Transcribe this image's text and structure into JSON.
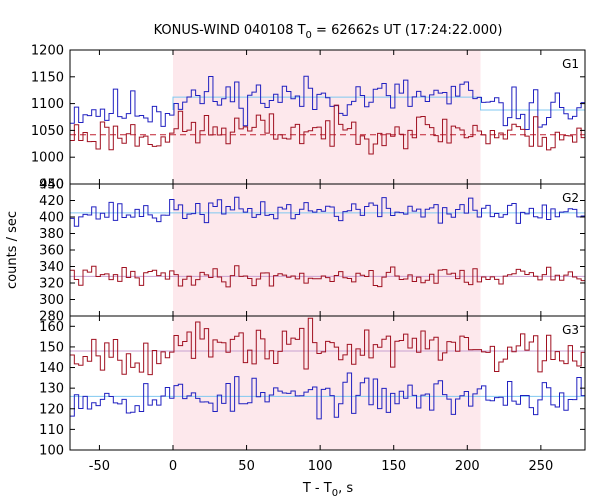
{
  "chart_data": {
    "type": "line",
    "title": {
      "prefix": "KONUS-WIND 040108 T",
      "sub": "0",
      "suffix": " = 62662s UT (17:24:22.000)"
    },
    "xlabel": {
      "prefix": "T - T",
      "sub": "0",
      "suffix": ", s"
    },
    "ylabel": "counts / sec",
    "xlim": [
      -70,
      280
    ],
    "xticks": [
      -50,
      0,
      50,
      100,
      150,
      200,
      250
    ],
    "highlight_interval": [
      0,
      209
    ],
    "colors": {
      "highlight": "#fde8ec",
      "blue_series": "#2020c0",
      "red_series": "#a01020",
      "blue_mean": "#80c8f0",
      "red_mean": "#c8a0d0",
      "red_dashed": "#c02030"
    },
    "panels": [
      {
        "label": "G1",
        "ylim": [
          950,
          1200
        ],
        "yticks": [
          950,
          1000,
          1050,
          1100,
          1150,
          1200
        ],
        "series": [
          {
            "color_key": "blue_series",
            "mean": 1088,
            "in_level": 1112,
            "amplitude": 30,
            "seed": 11
          },
          {
            "color_key": "red_series",
            "mean": 1042,
            "in_level": 1050,
            "amplitude": 26,
            "seed": 23
          }
        ],
        "reference_lines": [
          {
            "color_key": "blue_mean",
            "value": 1088,
            "start_x": 0,
            "level_in_interval": 1112,
            "dashed": false
          },
          {
            "color_key": "red_dashed",
            "value": 1042,
            "dashed": true
          }
        ]
      },
      {
        "label": "G2",
        "ylim": [
          280,
          440
        ],
        "yticks": [
          280,
          300,
          320,
          340,
          360,
          380,
          400,
          420,
          440
        ],
        "series": [
          {
            "color_key": "blue_series",
            "mean": 405,
            "in_level": 408,
            "amplitude": 11,
            "seed": 37
          },
          {
            "color_key": "red_series",
            "mean": 328,
            "in_level": 328,
            "amplitude": 9,
            "seed": 41
          }
        ],
        "reference_lines": [
          {
            "color_key": "blue_mean",
            "value": 405,
            "dashed": false
          },
          {
            "color_key": "red_mean",
            "value": 328,
            "dashed": false
          }
        ]
      },
      {
        "label": "G3",
        "ylim": [
          100,
          165
        ],
        "yticks": [
          100,
          110,
          120,
          130,
          140,
          150,
          160
        ],
        "series": [
          {
            "color_key": "blue_series",
            "mean": 126,
            "in_level": 126,
            "amplitude": 7,
            "seed": 53
          },
          {
            "color_key": "red_series",
            "mean": 148,
            "in_level": 150,
            "amplitude": 8,
            "seed": 67
          }
        ],
        "reference_lines": [
          {
            "color_key": "blue_mean",
            "value": 126,
            "dashed": false
          },
          {
            "color_key": "red_mean",
            "value": 148,
            "dashed": false
          }
        ]
      }
    ]
  }
}
